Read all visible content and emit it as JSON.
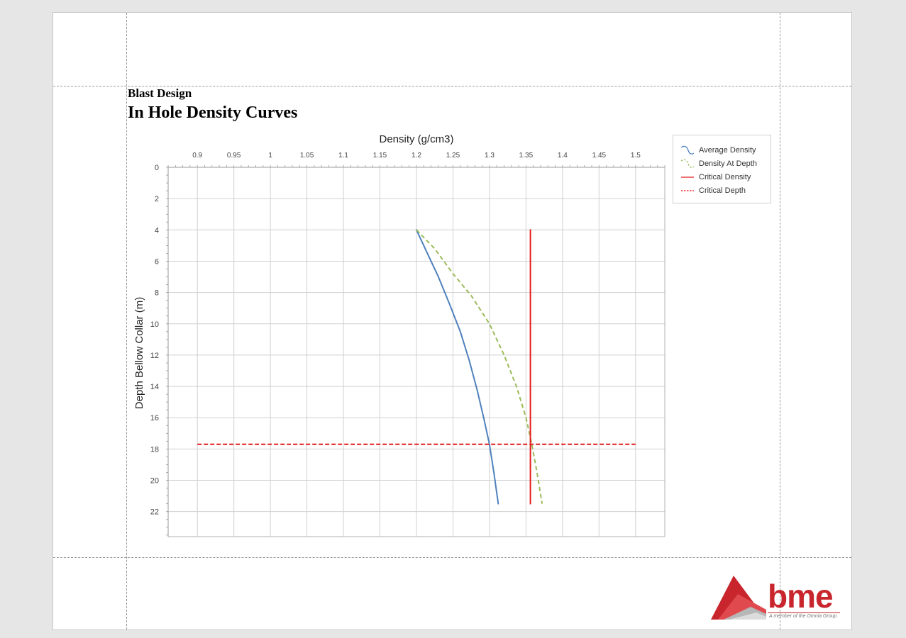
{
  "document": {
    "subtitle": "Blast Design",
    "title": "In Hole Density Curves"
  },
  "brand": {
    "logo_text": "bme",
    "tagline": "A member of the Omnia Group",
    "color": "#c8252c"
  },
  "chart_data": {
    "type": "line",
    "xlabel": "Density (g/cm3)",
    "ylabel": "Depth Bellow Collar (m)",
    "x_axis_position": "top",
    "y_axis_inverted": true,
    "xlim": [
      0.86,
      1.54
    ],
    "ylim": [
      0,
      23.6
    ],
    "x_ticks": [
      0.9,
      0.95,
      1,
      1.05,
      1.1,
      1.15,
      1.2,
      1.25,
      1.3,
      1.35,
      1.4,
      1.45,
      1.5
    ],
    "x_tick_labels": [
      "0.9",
      "0.95",
      "1",
      "1.05",
      "1.1",
      "1.15",
      "1.2",
      "1.25",
      "1.3",
      "1.35",
      "1.4",
      "1.45",
      "1.5"
    ],
    "y_ticks": [
      0,
      2,
      4,
      6,
      8,
      10,
      12,
      14,
      16,
      18,
      20,
      22
    ],
    "y_tick_labels": [
      "0",
      "2",
      "4",
      "6",
      "8",
      "10",
      "12",
      "14",
      "16",
      "18",
      "20",
      "22"
    ],
    "grid": true,
    "legend_position": "right",
    "series": [
      {
        "name": "Average Density",
        "color": "#4f81bd",
        "style": "solid",
        "x": [
          1.2,
          1.215,
          1.23,
          1.245,
          1.26,
          1.272,
          1.283,
          1.292,
          1.3,
          1.306,
          1.312
        ],
        "y": [
          4,
          5.5,
          7,
          8.7,
          10.5,
          12.3,
          14.2,
          16,
          17.7,
          19.5,
          21.5
        ]
      },
      {
        "name": "Density At Depth",
        "color": "#9bbb59",
        "style": "dashed",
        "x": [
          1.2,
          1.225,
          1.25,
          1.275,
          1.3,
          1.32,
          1.337,
          1.35,
          1.358,
          1.365,
          1.372
        ],
        "y": [
          4,
          5.2,
          6.8,
          8.2,
          10,
          12,
          14,
          16,
          17.7,
          19.5,
          21.5
        ]
      },
      {
        "name": "Critical Density",
        "color": "#e31a1c",
        "style": "solid",
        "x": [
          1.356,
          1.356
        ],
        "y": [
          4,
          21.5
        ]
      },
      {
        "name": "Critical Depth",
        "color": "#e31a1c",
        "style": "dashed",
        "x": [
          0.9,
          1.5
        ],
        "y": [
          17.7,
          17.7
        ]
      }
    ]
  }
}
